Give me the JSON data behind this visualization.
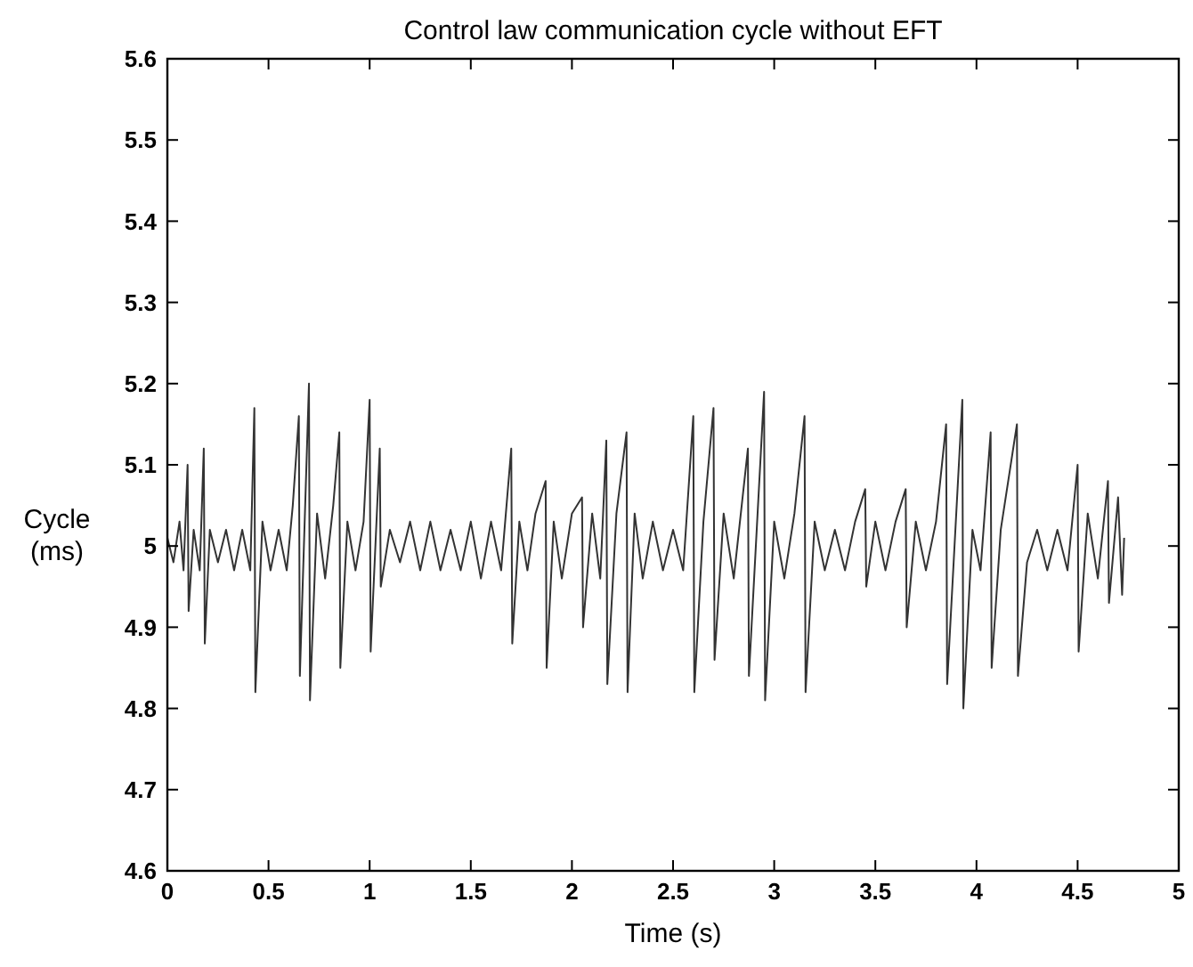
{
  "chart_data": {
    "type": "line",
    "title": "Control law communication cycle without EFT",
    "xlabel": "Time (s)",
    "ylabel": "Cycle (ms)",
    "xlim": [
      0,
      5
    ],
    "xticks": [
      0,
      0.5,
      1,
      1.5,
      2,
      2.5,
      3,
      3.5,
      4,
      4.5,
      5
    ],
    "ylim": [
      4.6,
      5.6
    ],
    "yticks": [
      4.6,
      4.7,
      4.8,
      4.9,
      5,
      5.1,
      5.2,
      5.3,
      5.4,
      5.5,
      5.6
    ],
    "grid": false,
    "line_style": "solid",
    "marker": "none",
    "series": [
      {
        "color": "#333333",
        "x": [
          0,
          0.03,
          0.06,
          0.08,
          0.1,
          0.105,
          0.13,
          0.16,
          0.18,
          0.185,
          0.21,
          0.25,
          0.29,
          0.33,
          0.37,
          0.41,
          0.43,
          0.435,
          0.47,
          0.51,
          0.55,
          0.59,
          0.62,
          0.65,
          0.655,
          0.7,
          0.705,
          0.74,
          0.78,
          0.82,
          0.85,
          0.855,
          0.89,
          0.93,
          0.97,
          1,
          1.005,
          1.05,
          1.055,
          1.1,
          1.15,
          1.2,
          1.25,
          1.3,
          1.35,
          1.4,
          1.45,
          1.5,
          1.55,
          1.6,
          1.65,
          1.7,
          1.705,
          1.74,
          1.78,
          1.82,
          1.87,
          1.875,
          1.91,
          1.95,
          2,
          2.05,
          2.055,
          2.1,
          2.14,
          2.17,
          2.175,
          2.22,
          2.27,
          2.275,
          2.31,
          2.35,
          2.4,
          2.45,
          2.5,
          2.55,
          2.6,
          2.605,
          2.65,
          2.7,
          2.705,
          2.75,
          2.8,
          2.87,
          2.875,
          2.95,
          2.955,
          3,
          3.05,
          3.1,
          3.15,
          3.155,
          3.2,
          3.25,
          3.3,
          3.35,
          3.4,
          3.45,
          3.455,
          3.5,
          3.55,
          3.6,
          3.65,
          3.655,
          3.7,
          3.75,
          3.8,
          3.85,
          3.855,
          3.93,
          3.935,
          3.98,
          4.02,
          4.07,
          4.075,
          4.12,
          4.2,
          4.205,
          4.25,
          4.3,
          4.35,
          4.4,
          4.45,
          4.5,
          4.505,
          4.55,
          4.6,
          4.65,
          4.655,
          4.7,
          4.72,
          4.73
        ],
        "values": [
          5.01,
          4.98,
          5.03,
          4.97,
          5.1,
          4.92,
          5.02,
          4.97,
          5.12,
          4.88,
          5.02,
          4.98,
          5.02,
          4.97,
          5.02,
          4.97,
          5.17,
          4.82,
          5.03,
          4.97,
          5.02,
          4.97,
          5.05,
          5.16,
          4.84,
          5.2,
          4.81,
          5.04,
          4.96,
          5.05,
          5.14,
          4.85,
          5.03,
          4.97,
          5.03,
          5.18,
          4.87,
          5.12,
          4.95,
          5.02,
          4.98,
          5.03,
          4.97,
          5.03,
          4.97,
          5.02,
          4.97,
          5.03,
          4.96,
          5.03,
          4.97,
          5.12,
          4.88,
          5.03,
          4.97,
          5.04,
          5.08,
          4.85,
          5.03,
          4.96,
          5.04,
          5.06,
          4.9,
          5.04,
          4.96,
          5.13,
          4.83,
          5.04,
          5.14,
          4.82,
          5.04,
          4.96,
          5.03,
          4.97,
          5.02,
          4.97,
          5.16,
          4.82,
          5.03,
          5.17,
          4.86,
          5.04,
          4.96,
          5.12,
          4.84,
          5.19,
          4.81,
          5.03,
          4.96,
          5.04,
          5.16,
          4.82,
          5.03,
          4.97,
          5.02,
          4.97,
          5.03,
          5.07,
          4.95,
          5.03,
          4.97,
          5.03,
          5.07,
          4.9,
          5.03,
          4.97,
          5.03,
          5.15,
          4.83,
          5.18,
          4.8,
          5.02,
          4.97,
          5.14,
          4.85,
          5.02,
          5.15,
          4.84,
          4.98,
          5.02,
          4.97,
          5.02,
          4.97,
          5.1,
          4.87,
          5.04,
          4.96,
          5.08,
          4.93,
          5.06,
          4.94,
          5.01
        ]
      }
    ]
  }
}
